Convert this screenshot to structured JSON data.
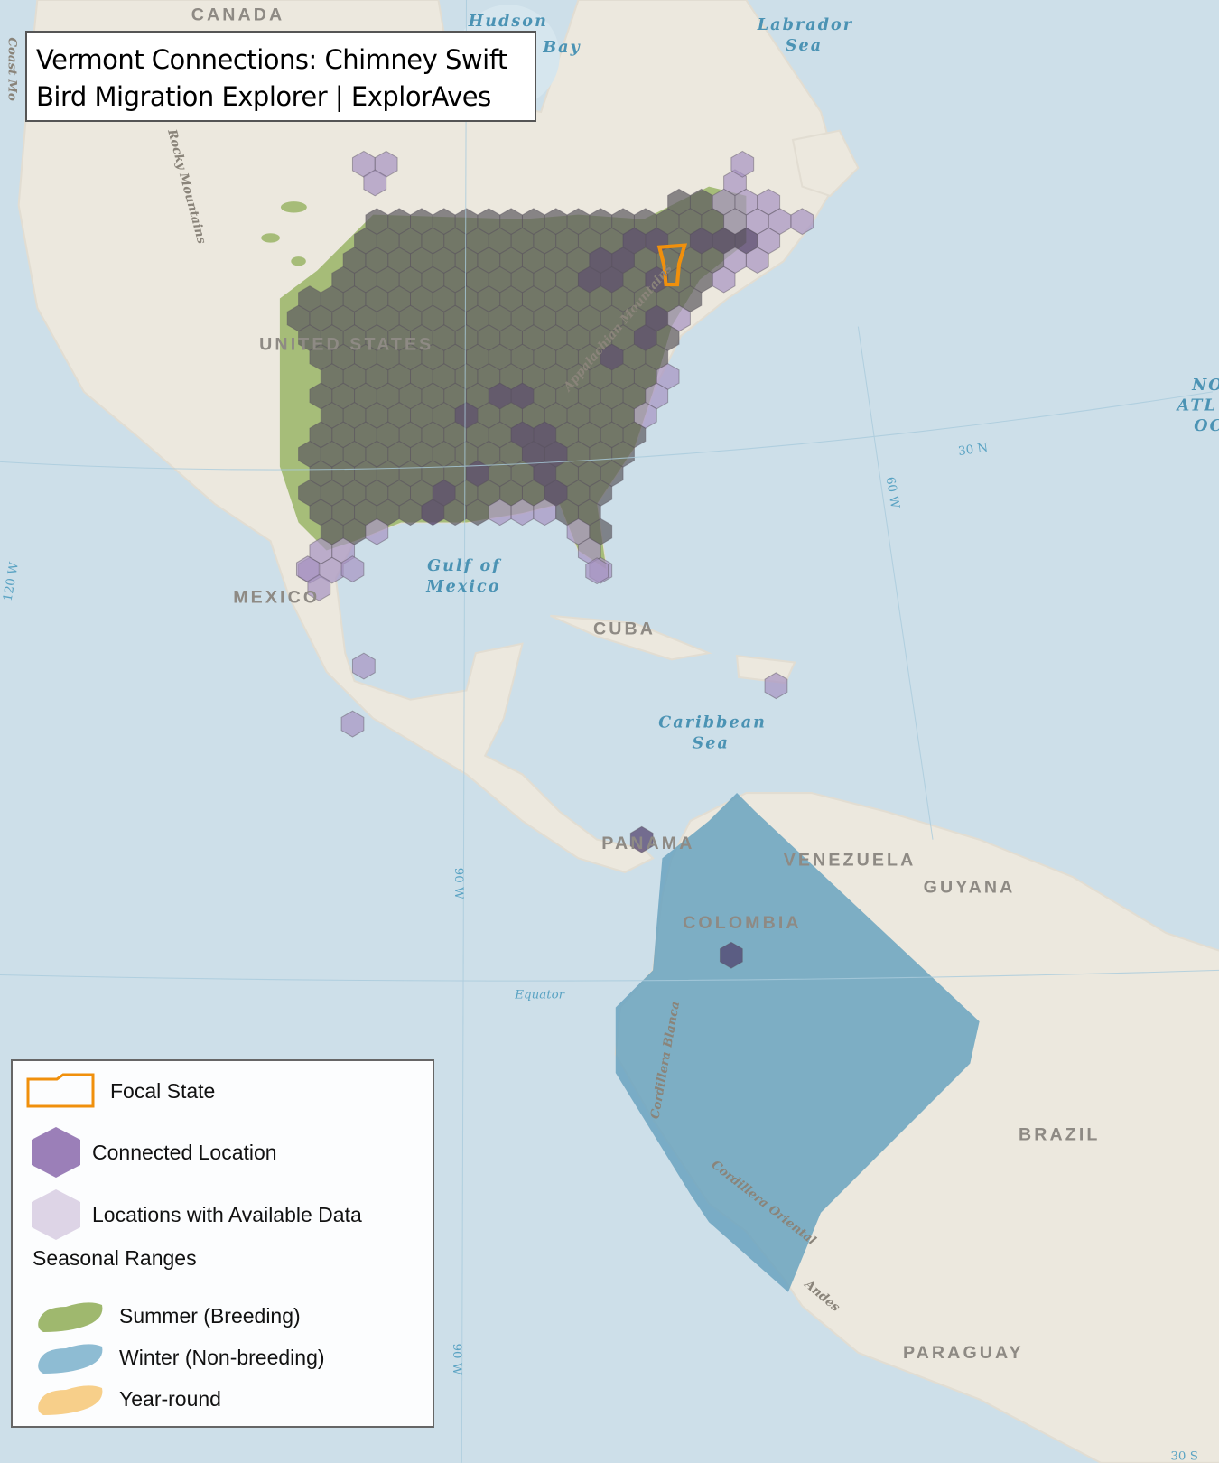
{
  "title": {
    "line1": "Vermont Connections: Chimney Swift",
    "line2": "Bird Migration Explorer | ExplorAves"
  },
  "map": {
    "countries": [
      "CANADA",
      "UNITED STATES",
      "MEXICO",
      "CUBA",
      "PANAMA",
      "VENEZUELA",
      "GUYANA",
      "COLOMBIA",
      "BRAZIL",
      "PARAGUAY"
    ],
    "water_labels": {
      "hudson_1": "Hudson",
      "hudson_2": "Bay",
      "labrador_1": "Labrador",
      "labrador_2": "Sea",
      "gulf_1": "Gulf of",
      "gulf_2": "Mexico",
      "caribbean_1": "Caribbean",
      "caribbean_2": "Sea",
      "atlantic_1": "NO",
      "atlantic_2": "ATL",
      "atlantic_3": "OC"
    },
    "graticule": {
      "lat30n": "30 N",
      "lon60w": "60 W",
      "lon90w_a": "90 W",
      "lon90w_b": "90 W",
      "lon120w": "120 W",
      "lat30s": "30 S",
      "equator": "Equator"
    },
    "mountains": {
      "rocky": "Rocky Mountains",
      "appalachian": "Appalachian Mountains",
      "blanca": "Cordillera Blanca",
      "oriental": "Cordillera Oriental",
      "andes": "Andes",
      "coast": "Coast Mo"
    },
    "focal_state": "Vermont"
  },
  "legend": {
    "focal_state": "Focal State",
    "connected": "Connected Location",
    "available": "Locations with Available Data",
    "seasonal_header": "Seasonal Ranges",
    "summer": "Summer (Breeding)",
    "winter": "Winter (Non-breeding)",
    "year_round": "Year-round"
  },
  "colors": {
    "focal_state": "#f0900c",
    "connected": "#9b7fb8",
    "available": "#d8cfe3",
    "summer": "#9fb86e",
    "winter": "#6aa3c0",
    "year_round": "#f7cf8a",
    "land": "#ede9e0",
    "ocean": "#cfe0ea"
  }
}
